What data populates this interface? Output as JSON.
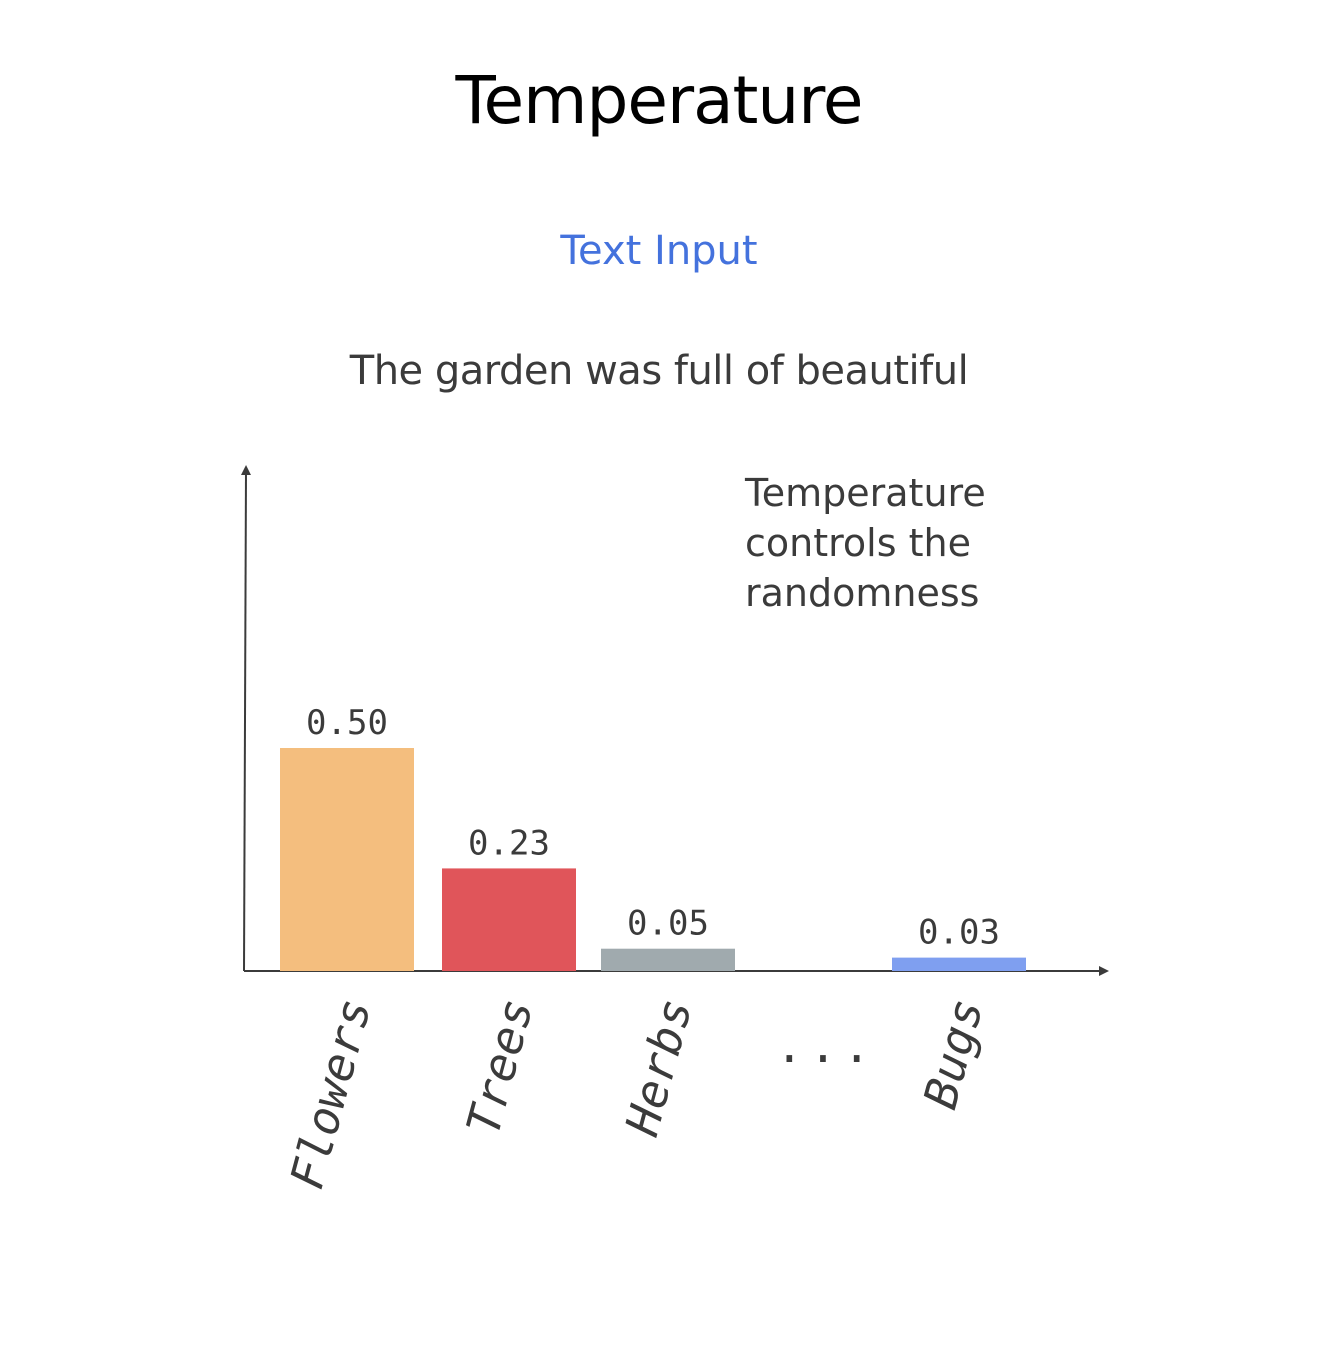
{
  "title": "Temperature",
  "subtitle": "Text Input",
  "prompt": "The garden was full of beautiful",
  "note": "Temperature\ncontrols the\nrandomness",
  "chart_data": {
    "type": "bar",
    "title": "",
    "xlabel": "",
    "ylabel": "",
    "categories": [
      "Flowers",
      "Trees",
      "Herbs",
      "...",
      "Bugs"
    ],
    "values": [
      0.5,
      0.23,
      0.05,
      null,
      0.03
    ],
    "value_labels": [
      "0.50",
      "0.23",
      "0.05",
      "",
      "0.03"
    ],
    "colors": [
      "#f4be7e",
      "#e0555a",
      "#a0aaae",
      "",
      "#7f9ff0"
    ],
    "ylim": [
      0,
      0.5
    ],
    "grid": false,
    "legend": "none"
  }
}
